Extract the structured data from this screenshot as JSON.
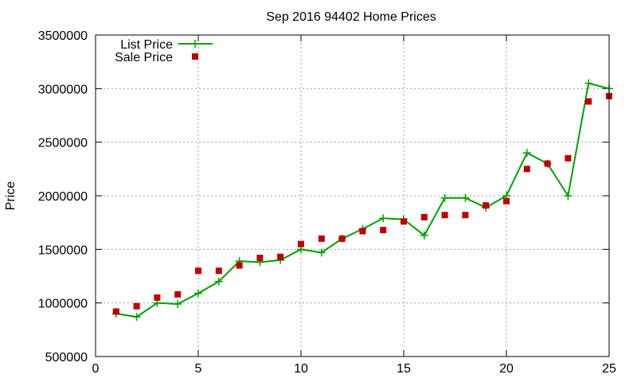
{
  "chart_data": {
    "type": "line",
    "title": "Sep 2016 94402 Home Prices",
    "xlabel": "",
    "ylabel": "Price",
    "xlim": [
      0,
      25
    ],
    "ylim": [
      500000,
      3500000
    ],
    "x_ticks": [
      "0",
      "5",
      "10",
      "15",
      "20",
      "25"
    ],
    "y_ticks": [
      "500000",
      "1000000",
      "1500000",
      "2000000",
      "2500000",
      "3000000",
      "3500000"
    ],
    "grid": true,
    "legend_position": "top-left",
    "x": [
      1,
      2,
      3,
      4,
      5,
      6,
      7,
      8,
      9,
      10,
      11,
      12,
      13,
      14,
      15,
      16,
      17,
      18,
      19,
      20,
      21,
      22,
      23,
      24,
      25
    ],
    "series": [
      {
        "name": "List Price",
        "style": "line-plus",
        "color": "#00a000",
        "values": [
          900000,
          870000,
          1000000,
          990000,
          1090000,
          1200000,
          1390000,
          1380000,
          1400000,
          1500000,
          1470000,
          1600000,
          1690000,
          1790000,
          1780000,
          1630000,
          1980000,
          1980000,
          1890000,
          2000000,
          2400000,
          2300000,
          2000000,
          3050000,
          3000000
        ]
      },
      {
        "name": "Sale Price",
        "style": "square-markers",
        "color": "#c00000",
        "values": [
          920000,
          970000,
          1050000,
          1080000,
          1300000,
          1300000,
          1350000,
          1420000,
          1430000,
          1550000,
          1600000,
          1600000,
          1670000,
          1680000,
          1760000,
          1800000,
          1820000,
          1820000,
          1910000,
          1950000,
          2250000,
          2300000,
          2350000,
          2880000,
          2930000
        ]
      }
    ]
  }
}
